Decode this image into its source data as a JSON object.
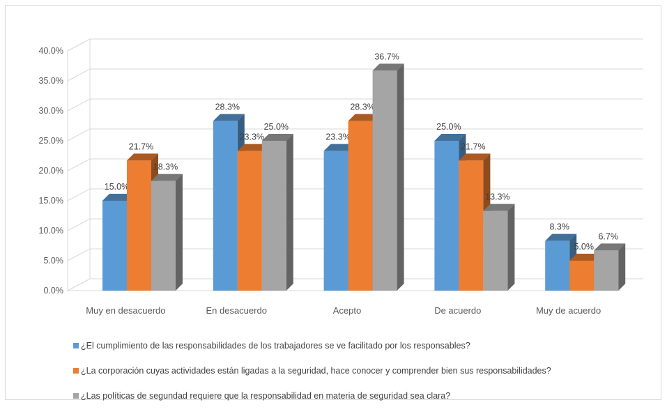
{
  "chart_data": {
    "type": "bar",
    "style": "3d-clustered-column",
    "title": "",
    "xlabel": "",
    "ylabel": "",
    "categories": [
      "Muy en desacuerdo",
      "En desacuerdo",
      "Acepto",
      "De acuerdo",
      "Muy de acuerdo"
    ],
    "series": [
      {
        "name": "¿El cumplimiento de las responsabilidades de los trabajadores se ve facilitado por los responsables?",
        "color": "#5b9bd5",
        "values": [
          15.0,
          28.3,
          23.3,
          25.0,
          8.3
        ],
        "labels": [
          "15.0%",
          "28.3%",
          "23.3%",
          "25.0%",
          "8.3%"
        ]
      },
      {
        "name": "¿La corporación cuyas actividades están ligadas a la seguridad, hace conocer y comprender bien sus responsabilidades?",
        "color": "#ed7d31",
        "values": [
          21.7,
          23.3,
          28.3,
          21.7,
          5.0
        ],
        "labels": [
          "21.7%",
          "23.3%",
          "28.3%",
          "21.7%",
          "5.0%"
        ]
      },
      {
        "name": "¿Las políticas de segundad requiere que la responsabilidad en materia de seguridad sea clara?",
        "color": "#a5a5a5",
        "values": [
          18.3,
          25.0,
          36.7,
          13.3,
          6.7
        ],
        "labels": [
          "18.3%",
          "25.0%",
          "36.7%",
          "13.3%",
          "6.7%"
        ]
      }
    ],
    "ylim": [
      0,
      40
    ],
    "yticks": [
      "0.0%",
      "5.0%",
      "10.0%",
      "15.0%",
      "20.0%",
      "25.0%",
      "30.0%",
      "35.0%",
      "40.0%"
    ],
    "grid": true,
    "legend_position": "bottom"
  }
}
